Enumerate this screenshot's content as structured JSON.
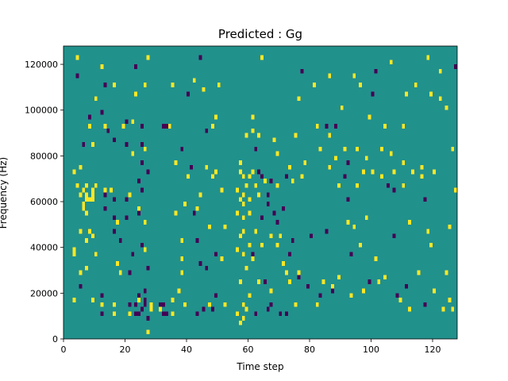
{
  "chart_data": {
    "type": "heatmap",
    "title": "Predicted : Gg",
    "xlabel": "Time step",
    "ylabel": "Frequency (Hz)",
    "xlim": [
      0,
      128
    ],
    "ylim": [
      0,
      128000
    ],
    "x_ticks": [
      0,
      20,
      40,
      60,
      80,
      100,
      120
    ],
    "y_ticks": [
      0,
      20000,
      40000,
      60000,
      80000,
      100000,
      120000
    ],
    "grid": false,
    "legend": "none",
    "colormap": "viridis",
    "value_levels": {
      "low": -1,
      "mid": 0,
      "high": 1
    },
    "colors": {
      "low": "#440154",
      "mid": "#21918c",
      "high": "#fde725"
    },
    "cell_height_hz": 2000,
    "cells": [
      [
        3,
        16000,
        1
      ],
      [
        3,
        36000,
        1
      ],
      [
        3,
        38000,
        1
      ],
      [
        3,
        72000,
        1
      ],
      [
        4,
        122000,
        1
      ],
      [
        4,
        114000,
        -1
      ],
      [
        4,
        66000,
        1
      ],
      [
        5,
        62000,
        1
      ],
      [
        5,
        74000,
        1
      ],
      [
        5,
        46000,
        1
      ],
      [
        5,
        28000,
        1
      ],
      [
        5,
        22000,
        -1
      ],
      [
        6,
        56000,
        1
      ],
      [
        6,
        58000,
        1
      ],
      [
        6,
        64000,
        1
      ],
      [
        6,
        84000,
        -1
      ],
      [
        7,
        54000,
        1
      ],
      [
        7,
        60000,
        1
      ],
      [
        7,
        62000,
        1
      ],
      [
        7,
        66000,
        1
      ],
      [
        7,
        42000,
        1
      ],
      [
        7,
        30000,
        1
      ],
      [
        8,
        92000,
        1
      ],
      [
        8,
        96000,
        -1
      ],
      [
        8,
        46000,
        1
      ],
      [
        8,
        60000,
        1
      ],
      [
        9,
        64000,
        1
      ],
      [
        9,
        62000,
        1
      ],
      [
        9,
        60000,
        1
      ],
      [
        9,
        44000,
        1
      ],
      [
        9,
        16000,
        1
      ],
      [
        9,
        84000,
        1
      ],
      [
        10,
        66000,
        1
      ],
      [
        10,
        104000,
        1
      ],
      [
        10,
        36000,
        1
      ],
      [
        12,
        118000,
        1
      ],
      [
        12,
        98000,
        -1
      ],
      [
        12,
        18000,
        -1
      ],
      [
        12,
        14000,
        1
      ],
      [
        12,
        10000,
        -1
      ],
      [
        13,
        110000,
        -1
      ],
      [
        13,
        92000,
        1
      ],
      [
        13,
        62000,
        -1
      ],
      [
        13,
        56000,
        -1
      ],
      [
        13,
        64000,
        1
      ],
      [
        14,
        90000,
        -1
      ],
      [
        15,
        64000,
        1
      ],
      [
        16,
        110000,
        1
      ],
      [
        16,
        86000,
        -1
      ],
      [
        16,
        60000,
        -1
      ],
      [
        16,
        52000,
        -1
      ],
      [
        16,
        46000,
        -1
      ],
      [
        16,
        14000,
        1
      ],
      [
        16,
        10000,
        1
      ],
      [
        17,
        50000,
        1
      ],
      [
        17,
        32000,
        1
      ],
      [
        18,
        42000,
        -1
      ],
      [
        18,
        28000,
        1
      ],
      [
        19,
        92000,
        1
      ],
      [
        20,
        94000,
        -1
      ],
      [
        20,
        84000,
        -1
      ],
      [
        20,
        60000,
        -1
      ],
      [
        20,
        52000,
        -1
      ],
      [
        21,
        62000,
        1
      ],
      [
        21,
        28000,
        -1
      ],
      [
        21,
        14000,
        -1
      ],
      [
        21,
        10000,
        1
      ],
      [
        22,
        94000,
        -1
      ],
      [
        22,
        94000,
        1
      ],
      [
        22,
        80000,
        1
      ],
      [
        22,
        36000,
        -1
      ],
      [
        23,
        118000,
        -1
      ],
      [
        23,
        106000,
        1
      ],
      [
        23,
        14000,
        -1
      ],
      [
        23,
        10000,
        -1
      ],
      [
        24,
        68000,
        -1
      ],
      [
        24,
        56000,
        1
      ],
      [
        24,
        54000,
        -1
      ],
      [
        24,
        16000,
        1
      ],
      [
        24,
        10000,
        -1
      ],
      [
        24,
        18000,
        -1
      ],
      [
        25,
        92000,
        -1
      ],
      [
        25,
        84000,
        -1
      ],
      [
        25,
        76000,
        -1
      ],
      [
        25,
        64000,
        -1
      ],
      [
        25,
        40000,
        -1
      ],
      [
        25,
        12000,
        -1
      ],
      [
        26,
        110000,
        1
      ],
      [
        26,
        82000,
        1
      ],
      [
        26,
        50000,
        1
      ],
      [
        26,
        38000,
        1
      ],
      [
        26,
        20000,
        -1
      ],
      [
        26,
        16000,
        -1
      ],
      [
        26,
        14000,
        -1
      ],
      [
        27,
        122000,
        1
      ],
      [
        27,
        72000,
        -1
      ],
      [
        27,
        30000,
        -1
      ],
      [
        27,
        8000,
        -1
      ],
      [
        27,
        2000,
        1
      ],
      [
        28,
        12000,
        1
      ],
      [
        28,
        14000,
        1
      ],
      [
        31,
        14000,
        -1
      ],
      [
        31,
        12000,
        1
      ],
      [
        32,
        92000,
        -1
      ],
      [
        32,
        14000,
        -1
      ],
      [
        32,
        10000,
        -1
      ],
      [
        33,
        92000,
        -1
      ],
      [
        33,
        10000,
        -1
      ],
      [
        34,
        92000,
        1
      ],
      [
        35,
        110000,
        1
      ],
      [
        35,
        10000,
        1
      ],
      [
        35,
        16000,
        1
      ],
      [
        36,
        76000,
        1
      ],
      [
        36,
        54000,
        1
      ],
      [
        37,
        20000,
        1
      ],
      [
        38,
        82000,
        -1
      ],
      [
        38,
        28000,
        1
      ],
      [
        38,
        42000,
        1
      ],
      [
        38,
        34000,
        1
      ],
      [
        39,
        58000,
        1
      ],
      [
        39,
        14000,
        1
      ],
      [
        40,
        70000,
        1
      ],
      [
        40,
        106000,
        -1
      ],
      [
        41,
        74000,
        -1
      ],
      [
        42,
        112000,
        1
      ],
      [
        42,
        54000,
        -1
      ],
      [
        43,
        56000,
        1
      ],
      [
        43,
        42000,
        -1
      ],
      [
        43,
        10000,
        -1
      ],
      [
        44,
        122000,
        -1
      ],
      [
        44,
        62000,
        1
      ],
      [
        44,
        32000,
        -1
      ],
      [
        45,
        108000,
        1
      ],
      [
        45,
        12000,
        -1
      ],
      [
        46,
        74000,
        1
      ],
      [
        46,
        90000,
        -1
      ],
      [
        46,
        30000,
        -1
      ],
      [
        47,
        48000,
        1
      ],
      [
        47,
        14000,
        1
      ],
      [
        48,
        92000,
        1
      ],
      [
        48,
        70000,
        1
      ],
      [
        48,
        12000,
        -1
      ],
      [
        49,
        36000,
        -1
      ],
      [
        49,
        96000,
        1
      ],
      [
        49,
        72000,
        1
      ],
      [
        49,
        18000,
        -1
      ],
      [
        50,
        110000,
        1
      ],
      [
        51,
        64000,
        1
      ],
      [
        51,
        34000,
        1
      ],
      [
        52,
        48000,
        1
      ],
      [
        52,
        14000,
        1
      ],
      [
        56,
        64000,
        1
      ],
      [
        56,
        38000,
        1
      ],
      [
        56,
        54000,
        1
      ],
      [
        56,
        10000,
        1
      ],
      [
        57,
        76000,
        1
      ],
      [
        57,
        72000,
        1
      ],
      [
        57,
        60000,
        1
      ],
      [
        57,
        44000,
        1
      ],
      [
        57,
        24000,
        1
      ],
      [
        57,
        6000,
        1
      ],
      [
        58,
        70000,
        1
      ],
      [
        58,
        62000,
        1
      ],
      [
        58,
        58000,
        1
      ],
      [
        58,
        52000,
        1
      ],
      [
        58,
        46000,
        1
      ],
      [
        58,
        36000,
        1
      ],
      [
        58,
        14000,
        1
      ],
      [
        58,
        8000,
        1
      ],
      [
        59,
        66000,
        1
      ],
      [
        59,
        88000,
        1
      ],
      [
        59,
        30000,
        1
      ],
      [
        59,
        12000,
        1
      ],
      [
        60,
        70000,
        1
      ],
      [
        60,
        60000,
        1
      ],
      [
        60,
        54000,
        1
      ],
      [
        60,
        40000,
        1
      ],
      [
        60,
        18000,
        1
      ],
      [
        61,
        72000,
        1
      ],
      [
        61,
        90000,
        1
      ],
      [
        61,
        96000,
        1
      ],
      [
        61,
        36000,
        -1
      ],
      [
        61,
        34000,
        1
      ],
      [
        62,
        66000,
        1
      ],
      [
        62,
        46000,
        1
      ],
      [
        62,
        82000,
        -1
      ],
      [
        62,
        10000,
        -1
      ],
      [
        63,
        72000,
        -1
      ],
      [
        63,
        88000,
        1
      ],
      [
        63,
        62000,
        1
      ],
      [
        63,
        24000,
        1
      ],
      [
        64,
        122000,
        1
      ],
      [
        64,
        70000,
        -1
      ],
      [
        64,
        52000,
        -1
      ],
      [
        64,
        40000,
        1
      ],
      [
        65,
        68000,
        1
      ],
      [
        65,
        24000,
        -1
      ],
      [
        66,
        62000,
        -1
      ],
      [
        66,
        58000,
        -1
      ],
      [
        66,
        12000,
        -1
      ],
      [
        67,
        68000,
        -1
      ],
      [
        67,
        44000,
        1
      ],
      [
        67,
        20000,
        1
      ],
      [
        67,
        14000,
        -1
      ],
      [
        68,
        86000,
        1
      ],
      [
        68,
        54000,
        -1
      ],
      [
        69,
        80000,
        1
      ],
      [
        69,
        66000,
        1
      ],
      [
        69,
        50000,
        -1
      ],
      [
        69,
        40000,
        1
      ],
      [
        70,
        44000,
        1
      ],
      [
        70,
        10000,
        -1
      ],
      [
        71,
        56000,
        -1
      ],
      [
        71,
        32000,
        1
      ],
      [
        72,
        70000,
        -1
      ],
      [
        72,
        28000,
        1
      ],
      [
        72,
        10000,
        -1
      ],
      [
        73,
        74000,
        1
      ],
      [
        73,
        36000,
        -1
      ],
      [
        73,
        24000,
        1
      ],
      [
        74,
        68000,
        1
      ],
      [
        74,
        42000,
        -1
      ],
      [
        75,
        88000,
        1
      ],
      [
        75,
        14000,
        1
      ],
      [
        76,
        104000,
        1
      ],
      [
        76,
        28000,
        1
      ],
      [
        76,
        26000,
        -1
      ],
      [
        77,
        116000,
        -1
      ],
      [
        77,
        70000,
        1
      ],
      [
        78,
        76000,
        1
      ],
      [
        79,
        22000,
        -1
      ],
      [
        80,
        44000,
        -1
      ],
      [
        81,
        110000,
        1
      ],
      [
        82,
        92000,
        1
      ],
      [
        82,
        14000,
        1
      ],
      [
        83,
        82000,
        1
      ],
      [
        83,
        18000,
        -1
      ],
      [
        84,
        24000,
        1
      ],
      [
        85,
        46000,
        -1
      ],
      [
        85,
        92000,
        -1
      ],
      [
        86,
        88000,
        1
      ],
      [
        86,
        114000,
        1
      ],
      [
        86,
        74000,
        1
      ],
      [
        87,
        22000,
        1
      ],
      [
        87,
        20000,
        -1
      ],
      [
        88,
        92000,
        -1
      ],
      [
        88,
        78000,
        1
      ],
      [
        89,
        66000,
        1
      ],
      [
        89,
        26000,
        1
      ],
      [
        90,
        100000,
        1
      ],
      [
        91,
        82000,
        1
      ],
      [
        91,
        70000,
        -1
      ],
      [
        92,
        76000,
        -1
      ],
      [
        92,
        60000,
        -1
      ],
      [
        92,
        50000,
        1
      ],
      [
        93,
        36000,
        -1
      ],
      [
        93,
        18000,
        1
      ],
      [
        94,
        114000,
        1
      ],
      [
        94,
        48000,
        1
      ],
      [
        95,
        82000,
        1
      ],
      [
        95,
        66000,
        1
      ],
      [
        96,
        110000,
        1
      ],
      [
        96,
        40000,
        1
      ],
      [
        97,
        72000,
        1
      ],
      [
        97,
        20000,
        1
      ],
      [
        98,
        78000,
        1
      ],
      [
        98,
        52000,
        1
      ],
      [
        99,
        96000,
        1
      ],
      [
        99,
        24000,
        -1
      ],
      [
        100,
        72000,
        1
      ],
      [
        100,
        106000,
        -1
      ],
      [
        101,
        116000,
        -1
      ],
      [
        101,
        34000,
        1
      ],
      [
        102,
        24000,
        1
      ],
      [
        103,
        82000,
        1
      ],
      [
        103,
        70000,
        1
      ],
      [
        104,
        92000,
        1
      ],
      [
        104,
        26000,
        1
      ],
      [
        105,
        66000,
        -1
      ],
      [
        106,
        120000,
        1
      ],
      [
        106,
        80000,
        1
      ],
      [
        107,
        44000,
        -1
      ],
      [
        107,
        64000,
        -1
      ],
      [
        107,
        72000,
        1
      ],
      [
        108,
        18000,
        -1
      ],
      [
        109,
        16000,
        1
      ],
      [
        110,
        92000,
        1
      ],
      [
        110,
        66000,
        1
      ],
      [
        110,
        76000,
        1
      ],
      [
        111,
        22000,
        -1
      ],
      [
        111,
        106000,
        1
      ],
      [
        112,
        50000,
        1
      ],
      [
        112,
        12000,
        1
      ],
      [
        113,
        72000,
        1
      ],
      [
        114,
        110000,
        1
      ],
      [
        115,
        28000,
        1
      ],
      [
        116,
        70000,
        1
      ],
      [
        116,
        74000,
        1
      ],
      [
        117,
        60000,
        -1
      ],
      [
        117,
        14000,
        -1
      ],
      [
        118,
        122000,
        1
      ],
      [
        118,
        46000,
        1
      ],
      [
        119,
        106000,
        1
      ],
      [
        119,
        40000,
        1
      ],
      [
        120,
        72000,
        1
      ],
      [
        120,
        20000,
        1
      ],
      [
        122,
        116000,
        1
      ],
      [
        122,
        104000,
        1
      ],
      [
        123,
        12000,
        1
      ],
      [
        124,
        28000,
        1
      ],
      [
        124,
        100000,
        1
      ],
      [
        125,
        16000,
        1
      ],
      [
        125,
        48000,
        1
      ],
      [
        126,
        82000,
        1
      ],
      [
        126,
        12000,
        1
      ],
      [
        127,
        64000,
        1
      ],
      [
        127,
        118000,
        -1
      ],
      [
        128,
        26000,
        -1
      ]
    ]
  }
}
